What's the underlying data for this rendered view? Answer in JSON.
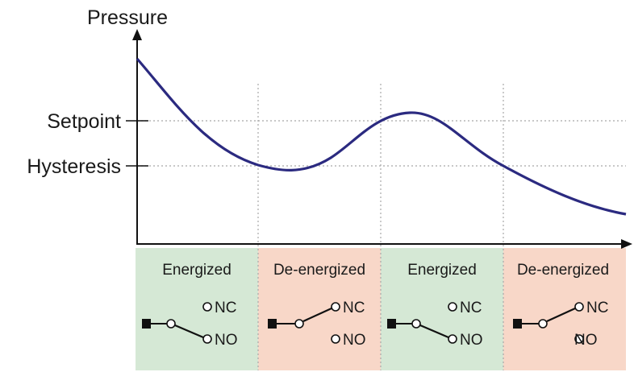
{
  "axis": {
    "y_label": "Pressure",
    "setpoint_label": "Setpoint",
    "hysteresis_label": "Hysteresis"
  },
  "colors": {
    "curve": "#2b2a80",
    "energized_bg": "#d5e8d5",
    "deenergized_bg": "#f8d7c8",
    "axis": "#111111",
    "grid": "#a8a8a8"
  },
  "panels": [
    {
      "state": "Energized",
      "kind": "energized",
      "nc": "NC",
      "no": "NO"
    },
    {
      "state": "De-energized",
      "kind": "deenergized",
      "nc": "NC",
      "no": "NO"
    },
    {
      "state": "Energized",
      "kind": "energized",
      "nc": "NC",
      "no": "NO"
    },
    {
      "state": "De-energized",
      "kind": "deenergized",
      "nc": "NC",
      "no": "NO"
    }
  ]
}
